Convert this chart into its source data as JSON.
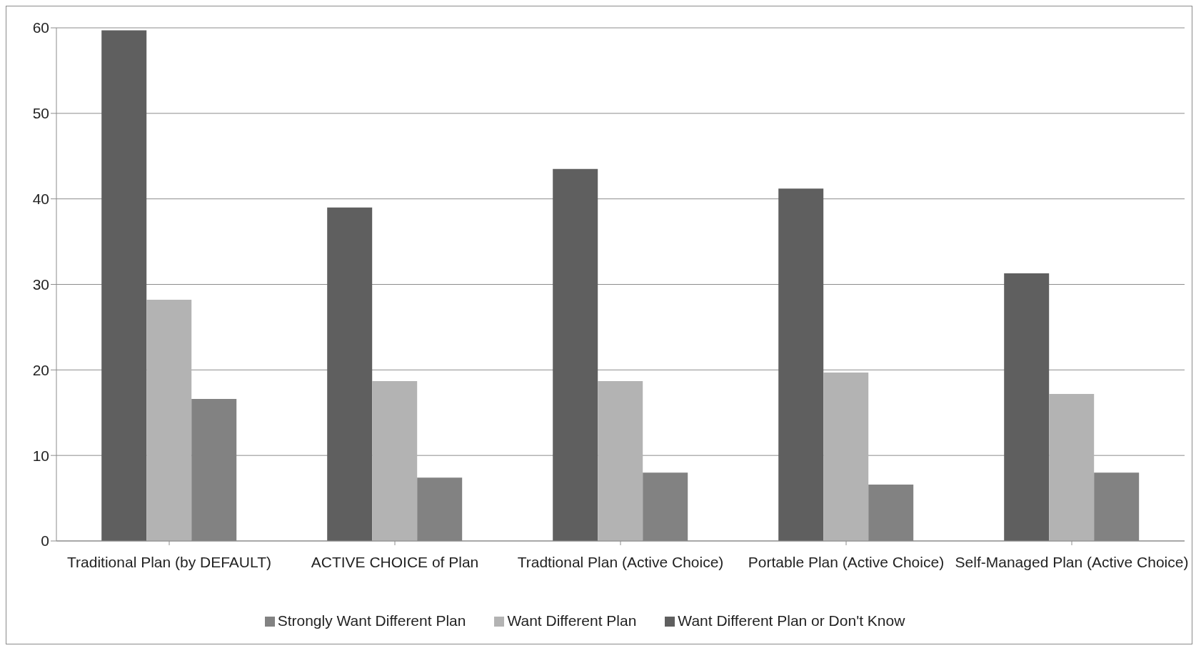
{
  "chart_data": {
    "type": "bar",
    "categories": [
      "Traditional Plan (by DEFAULT)",
      "ACTIVE CHOICE of Plan",
      "Tradtional Plan (Active Choice)",
      "Portable Plan (Active Choice)",
      "Self-Managed Plan (Active Choice)"
    ],
    "series": [
      {
        "name": "Want Different Plan or Don't Know",
        "color": "#5f5f5f",
        "values": [
          59.7,
          39.0,
          43.5,
          41.2,
          31.3
        ]
      },
      {
        "name": "Want Different Plan",
        "color": "#b3b3b3",
        "values": [
          28.2,
          18.7,
          18.7,
          19.7,
          17.2
        ]
      },
      {
        "name": "Strongly Want Different Plan",
        "color": "#828282",
        "values": [
          16.6,
          7.4,
          8.0,
          6.6,
          8.0
        ]
      }
    ],
    "ylim": [
      0,
      60
    ],
    "yticks": [
      0,
      10,
      20,
      30,
      40,
      50,
      60
    ],
    "grid": "y",
    "legend": "bottom"
  }
}
